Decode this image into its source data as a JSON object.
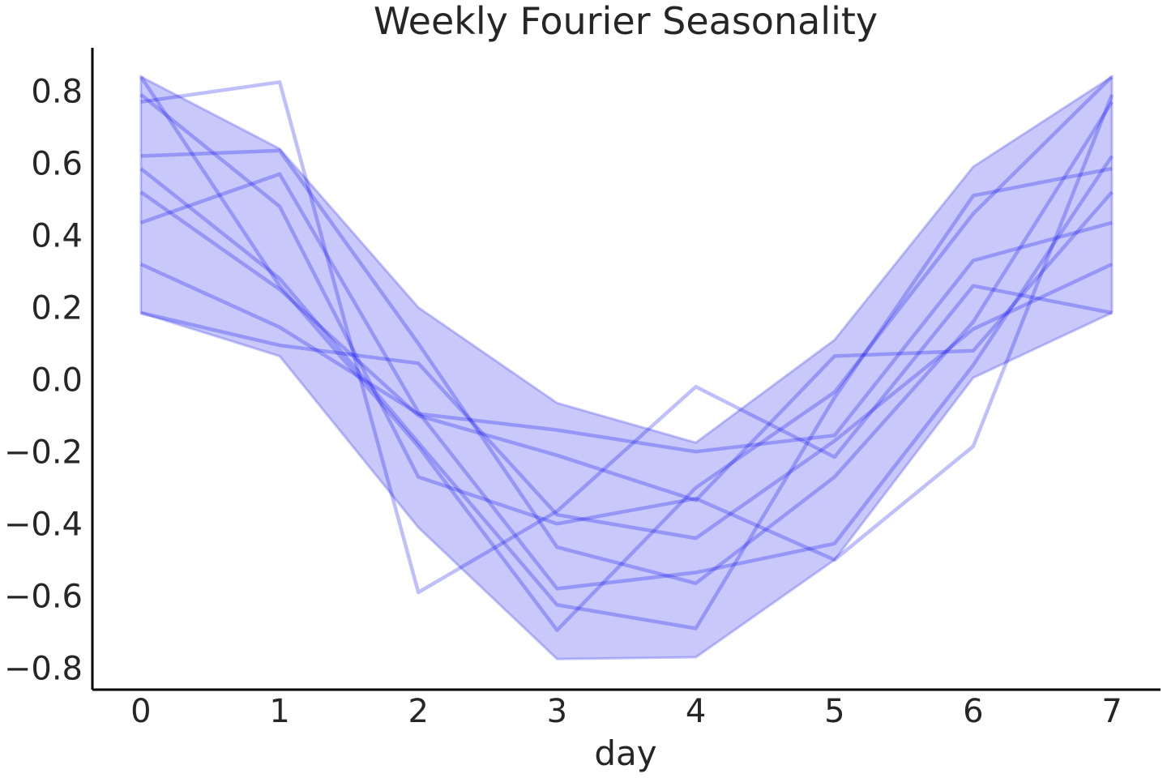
{
  "chart_data": {
    "type": "line",
    "title": "Weekly Fourier Seasonality",
    "xlabel": "day",
    "ylabel": "",
    "xlim": [
      -0.35,
      7.35
    ],
    "ylim": [
      -0.86,
      0.92
    ],
    "x": [
      0,
      1,
      2,
      3,
      4,
      5,
      6,
      7
    ],
    "x_ticks": [
      0,
      1,
      2,
      3,
      4,
      5,
      6,
      7
    ],
    "x_tick_labels": [
      "0",
      "1",
      "2",
      "3",
      "4",
      "5",
      "6",
      "7"
    ],
    "y_ticks": [
      -0.8,
      -0.6,
      -0.4,
      -0.2,
      0.0,
      0.2,
      0.4,
      0.6,
      0.8
    ],
    "y_tick_labels": [
      "−0.8",
      "−0.6",
      "−0.4",
      "−0.2",
      "0.0",
      "0.2",
      "0.4",
      "0.6",
      "0.8"
    ],
    "band": {
      "upper": [
        0.84,
        0.64,
        0.2,
        -0.065,
        -0.175,
        0.11,
        0.59,
        0.84
      ],
      "lower": [
        0.185,
        0.065,
        -0.41,
        -0.775,
        -0.77,
        -0.5,
        0.005,
        0.185
      ]
    },
    "grid": false,
    "series": [
      {
        "values": [
          0.77,
          0.825,
          -0.59,
          -0.365,
          -0.02,
          -0.215,
          0.26,
          0.185
        ]
      },
      {
        "values": [
          0.84,
          0.26,
          -0.185,
          -0.695,
          -0.3,
          -0.035,
          0.46,
          0.84
        ]
      },
      {
        "values": [
          0.79,
          0.48,
          -0.27,
          -0.4,
          -0.33,
          -0.5,
          -0.185,
          0.79
        ]
      },
      {
        "values": [
          0.62,
          0.635,
          0.1,
          -0.465,
          -0.565,
          -0.27,
          0.16,
          0.77
        ]
      },
      {
        "values": [
          0.585,
          0.28,
          -0.175,
          -0.625,
          -0.69,
          -0.05,
          0.51,
          0.585
        ]
      },
      {
        "values": [
          0.52,
          0.25,
          -0.1,
          -0.21,
          -0.335,
          0.065,
          0.08,
          0.52
        ]
      },
      {
        "values": [
          0.435,
          0.57,
          -0.09,
          -0.58,
          -0.535,
          -0.455,
          0.04,
          0.62
        ]
      },
      {
        "values": [
          0.32,
          0.145,
          -0.095,
          -0.14,
          -0.2,
          -0.155,
          0.33,
          0.435
        ]
      },
      {
        "values": [
          0.185,
          0.095,
          0.045,
          -0.375,
          -0.44,
          -0.17,
          0.14,
          0.32
        ]
      }
    ],
    "colors": {
      "line": "#0000ee",
      "band": "#5555ee",
      "text": "#262626",
      "spine": "#000000"
    }
  }
}
